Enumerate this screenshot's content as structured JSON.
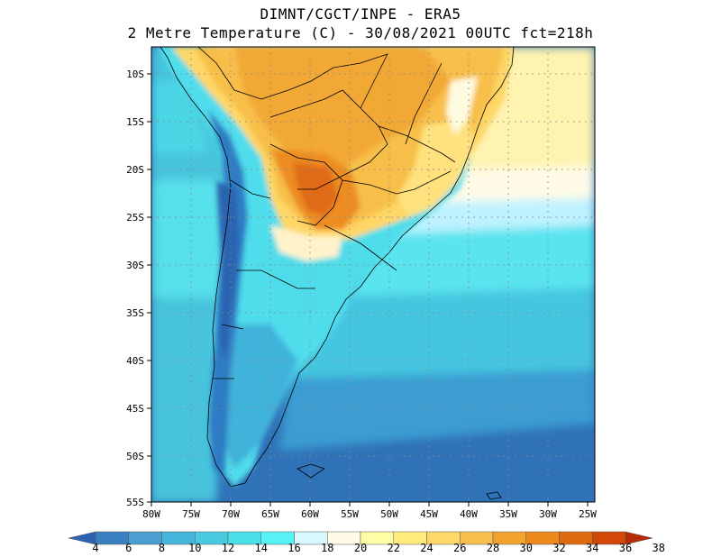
{
  "header": {
    "line1": "DIMNT/CGCT/INPE -  ERA5",
    "line2": "2 Metre Temperature (C) -  30/08/2021 00UTC fct=218h"
  },
  "map": {
    "lon_labels": [
      "80W",
      "75W",
      "70W",
      "65W",
      "60W",
      "55W",
      "50W",
      "45W",
      "40W",
      "35W",
      "30W",
      "25W"
    ],
    "lat_labels": [
      "10S",
      "15S",
      "20S",
      "25S",
      "30S",
      "35S",
      "40S",
      "45S",
      "50S",
      "55S"
    ]
  },
  "colorbar": {
    "labels": [
      "4",
      "6",
      "8",
      "10",
      "12",
      "14",
      "16",
      "18",
      "20",
      "22",
      "24",
      "26",
      "28",
      "30",
      "32",
      "34",
      "36",
      "38"
    ],
    "colors": [
      "#2a64b0",
      "#3880c0",
      "#4a9fd0",
      "#45b5dc",
      "#48cbe0",
      "#4ce0e8",
      "#56f2f4",
      "#d7f8ff",
      "#fffbe6",
      "#fffca6",
      "#ffec7c",
      "#ffd86a",
      "#f7c04a",
      "#f2a32e",
      "#ec8a1c",
      "#e06a10",
      "#d14808",
      "#b72a05"
    ]
  },
  "colors": {
    "frame": "#000000",
    "grid": "#888888"
  }
}
